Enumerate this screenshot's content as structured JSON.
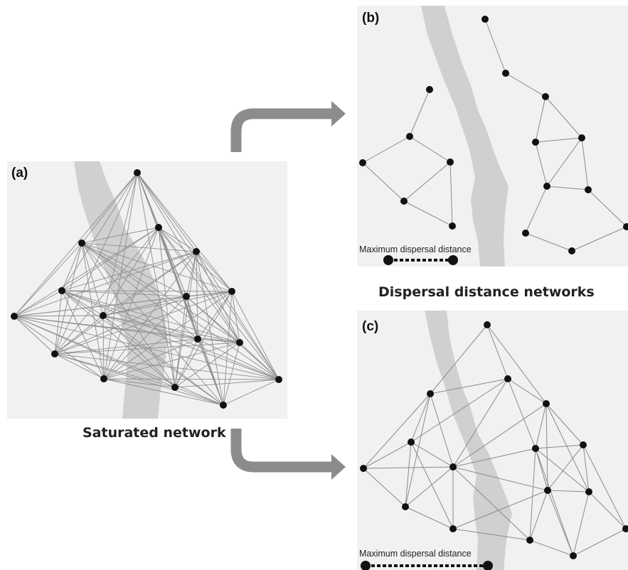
{
  "panels": {
    "a": {
      "label": "(a)",
      "caption": "Saturated network"
    },
    "b": {
      "label": "(b)",
      "scale_label": "Maximum dispersal distance"
    },
    "c": {
      "label": "(c)",
      "scale_label": "Maximum dispersal distance"
    }
  },
  "group_caption": "Dispersal distance networks",
  "colors": {
    "panel_bg": "#f0f1f3",
    "river": "#cfd0d2",
    "edge": "#8a8a8a",
    "node": "#111111",
    "arrow": "#8c8c8c"
  }
}
